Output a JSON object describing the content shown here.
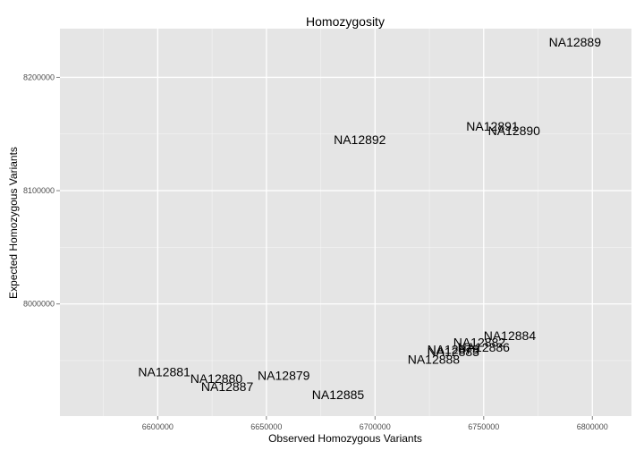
{
  "chart_data": {
    "type": "scatter",
    "title": "Homozygosity",
    "xlabel": "Observed Homozygous Variants",
    "ylabel": "Expected Homozygous Variants",
    "xlim": [
      6555000,
      6818000
    ],
    "ylim": [
      7901000,
      8243000
    ],
    "xticks": [
      6600000,
      6650000,
      6700000,
      6750000,
      6800000
    ],
    "yticks": [
      8000000,
      8100000,
      8200000
    ],
    "grid": true,
    "background": "#e5e5e5",
    "gridline_color": "#ffffff",
    "points": [
      {
        "label": "NA12889",
        "x": 6792000,
        "y": 8231000
      },
      {
        "label": "NA12891",
        "x": 6754000,
        "y": 8157000
      },
      {
        "label": "NA12890",
        "x": 6764000,
        "y": 8153000
      },
      {
        "label": "NA12892",
        "x": 6693000,
        "y": 8145000
      },
      {
        "label": "NA12884",
        "x": 6762000,
        "y": 7972000
      },
      {
        "label": "NA12882",
        "x": 6748000,
        "y": 7966000
      },
      {
        "label": "NA12886",
        "x": 6750000,
        "y": 7962000
      },
      {
        "label": "NA12878",
        "x": 6736000,
        "y": 7960000
      },
      {
        "label": "NA12883",
        "x": 6736000,
        "y": 7958000
      },
      {
        "label": "NA12888",
        "x": 6727000,
        "y": 7951000
      },
      {
        "label": "NA12881",
        "x": 6603000,
        "y": 7940000
      },
      {
        "label": "NA12879",
        "x": 6658000,
        "y": 7937000
      },
      {
        "label": "NA12880",
        "x": 6627000,
        "y": 7934000
      },
      {
        "label": "NA12887",
        "x": 6632000,
        "y": 7927000
      },
      {
        "label": "NA12885",
        "x": 6683000,
        "y": 7920000
      }
    ]
  }
}
